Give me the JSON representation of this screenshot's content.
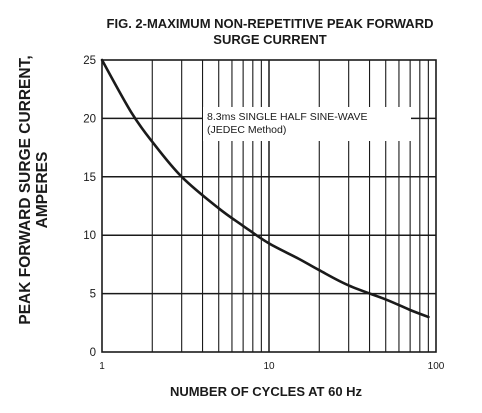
{
  "chart_data": {
    "type": "line",
    "title_line1": "FIG. 2-MAXIMUM NON-REPETITIVE PEAK FORWARD",
    "title_line2": "SURGE CURRENT",
    "ylabel_line1": "PEAK  FORWARD SURGE CURRENT,",
    "ylabel_line2": "AMPERES",
    "xlabel": "NUMBER OF CYCLES AT 60 Hz",
    "annotation_line1": "8.3ms SINGLE HALF SINE-WAVE",
    "annotation_line2": "(JEDEC Method)",
    "x_scale": "log",
    "xlim": [
      1,
      100
    ],
    "ylim": [
      0,
      25
    ],
    "grid": true,
    "x_ticks": [
      "1",
      "10",
      "100"
    ],
    "y_ticks": [
      "0",
      "5",
      "10",
      "15",
      "20",
      "25"
    ],
    "series": [
      {
        "x": [
          1,
          1.5,
          2,
          3,
          5,
          7,
          10,
          15,
          20,
          30,
          50,
          70,
          90
        ],
        "y": [
          25,
          20.5,
          18,
          15,
          12.3,
          10.8,
          9.3,
          8,
          7,
          5.7,
          4.5,
          3.6,
          3
        ]
      }
    ],
    "line_color": "#1a1a1a",
    "grid_color": "#1a1a1a"
  }
}
